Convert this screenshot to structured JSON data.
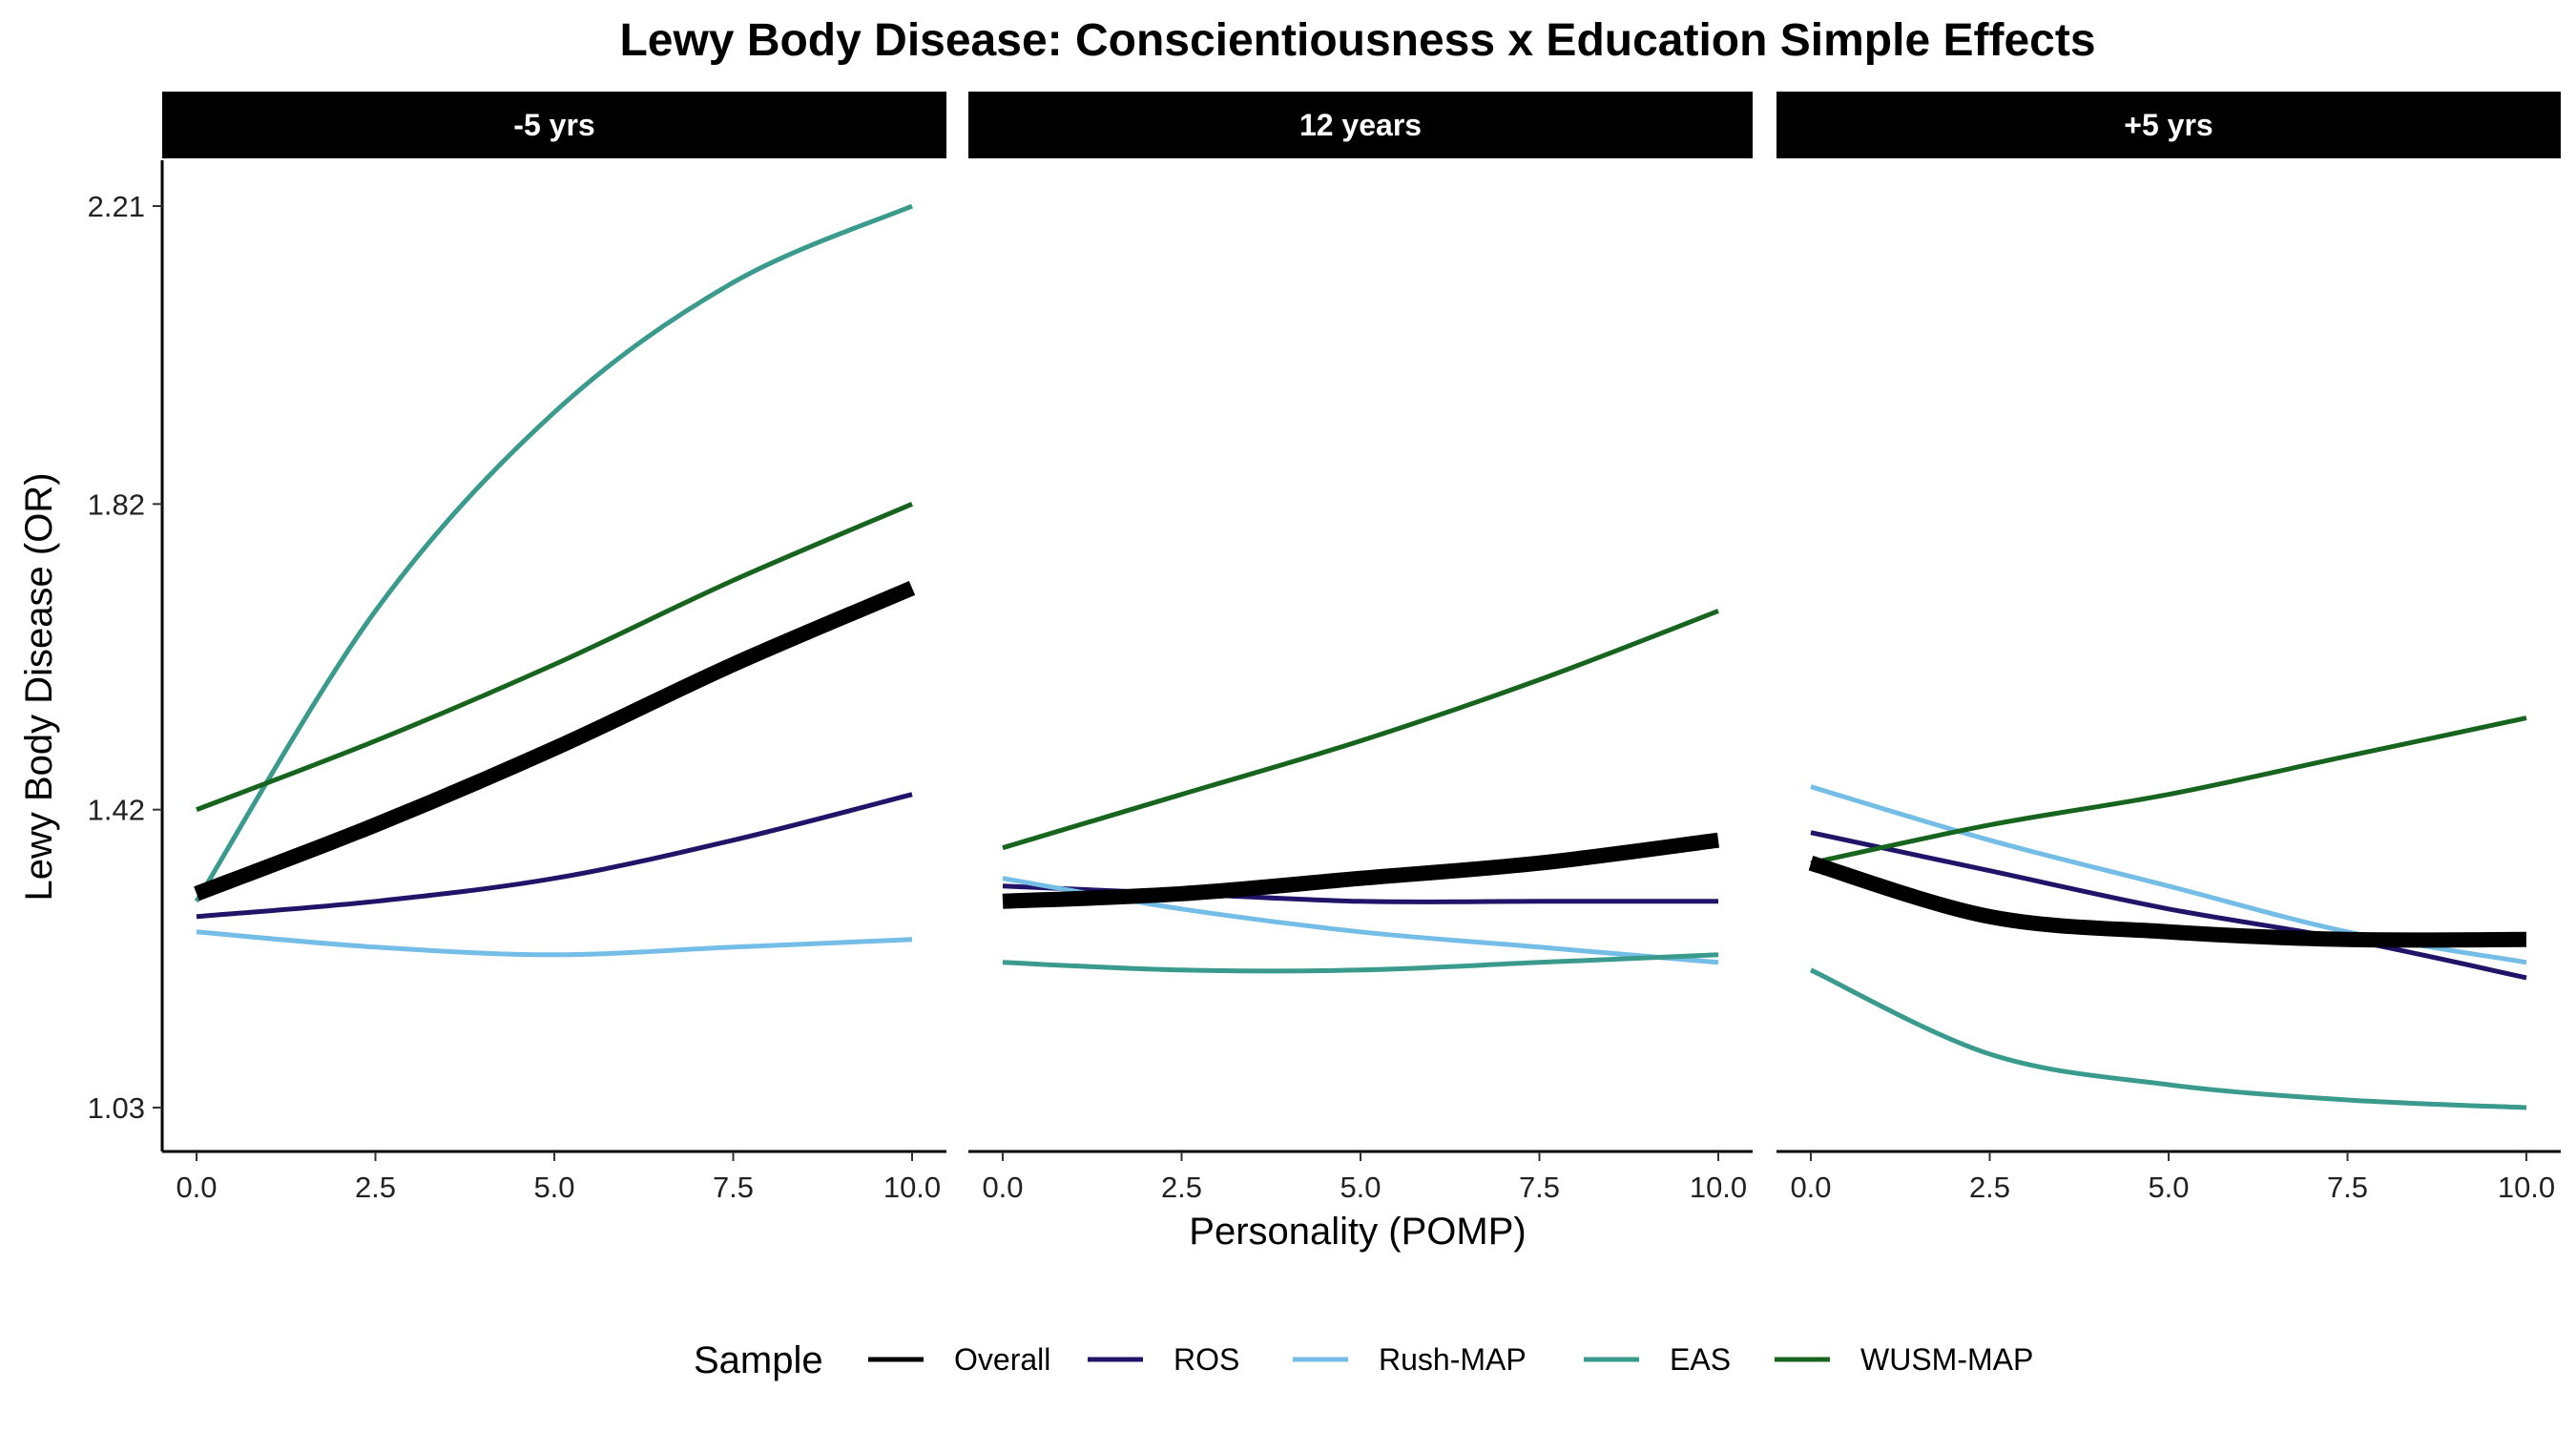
{
  "chart_data": {
    "type": "line",
    "title": "Lewy Body Disease: Conscientiousness x Education Simple Effects",
    "xlabel": "Personality (POMP)",
    "ylabel": "Lewy Body Disease (OR)",
    "xlim": [
      0,
      10
    ],
    "ylim": [
      1.03,
      2.21
    ],
    "x_ticks": [
      0,
      2.5,
      5,
      7.5,
      10
    ],
    "x_tick_labels": [
      "0.0",
      "2.5",
      "5.0",
      "7.5",
      "10.0"
    ],
    "y_ticks": [
      1.03,
      1.42,
      1.82,
      2.21
    ],
    "y_tick_labels": [
      "1.03",
      "1.42",
      "1.82",
      "2.21"
    ],
    "grid": false,
    "legend": {
      "title": "Sample",
      "position": "bottom"
    },
    "x": [
      0,
      2.5,
      5,
      7.5,
      10
    ],
    "series_styles": [
      {
        "name": "Overall",
        "color": "#000000",
        "emphasis": true
      },
      {
        "name": "ROS",
        "color": "#1f1468"
      },
      {
        "name": "Rush-MAP",
        "color": "#74bde6"
      },
      {
        "name": "EAS",
        "color": "#3a9a8c"
      },
      {
        "name": "WUSM-MAP",
        "color": "#17641f"
      }
    ],
    "panels": [
      {
        "label": "-5 yrs",
        "series": [
          {
            "name": "Overall",
            "values": [
              1.31,
              1.4,
              1.5,
              1.61,
              1.71
            ]
          },
          {
            "name": "ROS",
            "values": [
              1.28,
              1.3,
              1.33,
              1.38,
              1.44
            ]
          },
          {
            "name": "Rush-MAP",
            "values": [
              1.26,
              1.24,
              1.23,
              1.24,
              1.25
            ]
          },
          {
            "name": "EAS",
            "values": [
              1.3,
              1.68,
              1.94,
              2.11,
              2.21
            ]
          },
          {
            "name": "WUSM-MAP",
            "values": [
              1.42,
              1.51,
              1.61,
              1.72,
              1.82
            ]
          }
        ]
      },
      {
        "label": "12 years",
        "series": [
          {
            "name": "Overall",
            "values": [
              1.3,
              1.31,
              1.33,
              1.35,
              1.38
            ]
          },
          {
            "name": "ROS",
            "values": [
              1.32,
              1.31,
              1.3,
              1.3,
              1.3
            ]
          },
          {
            "name": "Rush-MAP",
            "values": [
              1.33,
              1.29,
              1.26,
              1.24,
              1.22
            ]
          },
          {
            "name": "EAS",
            "values": [
              1.22,
              1.21,
              1.21,
              1.22,
              1.23
            ]
          },
          {
            "name": "WUSM-MAP",
            "values": [
              1.37,
              1.44,
              1.51,
              1.59,
              1.68
            ]
          }
        ]
      },
      {
        "label": "+5 yrs",
        "series": [
          {
            "name": "Overall",
            "values": [
              1.35,
              1.28,
              1.26,
              1.25,
              1.25
            ]
          },
          {
            "name": "ROS",
            "values": [
              1.39,
              1.34,
              1.29,
              1.25,
              1.2
            ]
          },
          {
            "name": "Rush-MAP",
            "values": [
              1.45,
              1.38,
              1.32,
              1.26,
              1.22
            ]
          },
          {
            "name": "EAS",
            "values": [
              1.21,
              1.1,
              1.06,
              1.04,
              1.03
            ]
          },
          {
            "name": "WUSM-MAP",
            "values": [
              1.35,
              1.4,
              1.44,
              1.49,
              1.54
            ]
          }
        ]
      }
    ]
  }
}
